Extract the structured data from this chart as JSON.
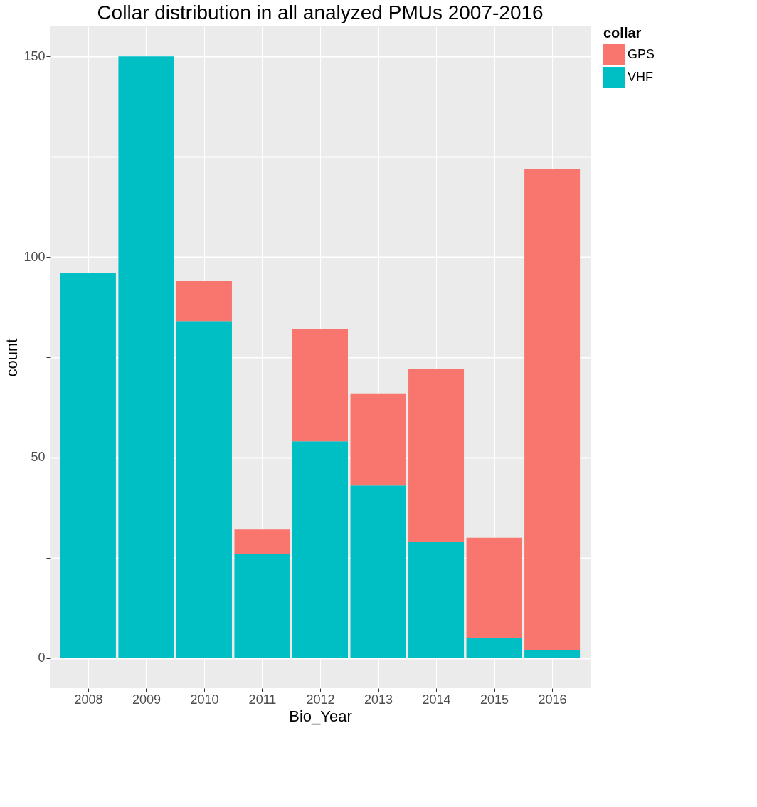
{
  "chart_data": {
    "type": "bar",
    "title": "Collar distribution in all analyzed PMUs 2007-2016",
    "xlabel": "Bio_Year",
    "ylabel": "count",
    "legend_title": "collar",
    "categories": [
      "2008",
      "2009",
      "2010",
      "2011",
      "2012",
      "2013",
      "2014",
      "2015",
      "2016"
    ],
    "stacked": true,
    "series": [
      {
        "name": "VHF",
        "color": "#00bfc4",
        "values": [
          96,
          150,
          84,
          26,
          54,
          43,
          29,
          5,
          2
        ]
      },
      {
        "name": "GPS",
        "color": "#f8766d",
        "values": [
          0,
          0,
          10,
          6,
          28,
          23,
          43,
          25,
          120
        ]
      }
    ],
    "ylim": [
      -7.5,
      157.5
    ],
    "yticks": [
      0,
      {
        "value": 25,
        "label": null
      },
      50,
      {
        "value": 75,
        "label": null
      },
      100,
      {
        "value": 125,
        "label": null
      },
      150
    ],
    "grid": true,
    "legend": "right"
  }
}
